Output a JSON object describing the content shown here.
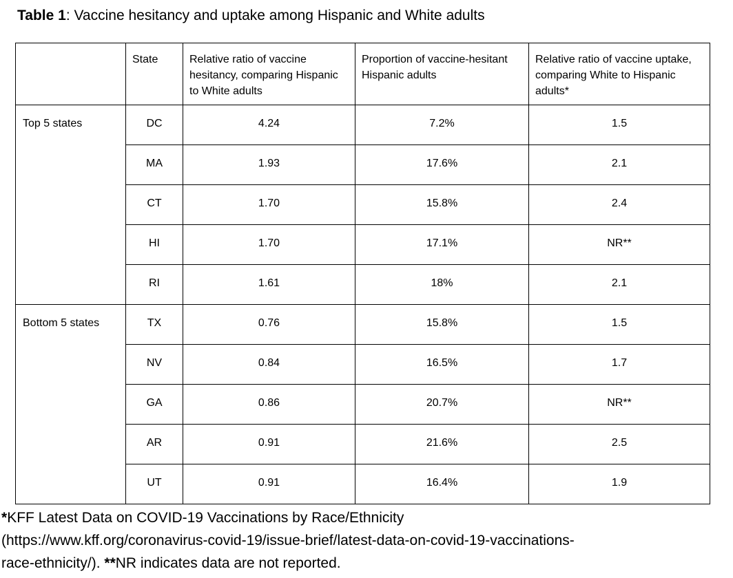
{
  "title": {
    "bold_part": "Table 1",
    "rest": ": Vaccine hesitancy and uptake among Hispanic and White adults"
  },
  "table": {
    "columns": [
      "",
      "State",
      "Relative ratio of vaccine hesitancy, comparing Hispanic to White adults",
      "Proportion of vaccine-hesitant Hispanic adults",
      "Relative ratio of vaccine uptake, comparing White to Hispanic adults*"
    ],
    "groups": [
      {
        "label": "Top 5 states",
        "rows": [
          {
            "state": "DC",
            "hesitancy_ratio": "4.24",
            "hesitant_proportion": "7.2%",
            "uptake_ratio": "1.5"
          },
          {
            "state": "MA",
            "hesitancy_ratio": "1.93",
            "hesitant_proportion": "17.6%",
            "uptake_ratio": "2.1"
          },
          {
            "state": "CT",
            "hesitancy_ratio": "1.70",
            "hesitant_proportion": "15.8%",
            "uptake_ratio": "2.4"
          },
          {
            "state": "HI",
            "hesitancy_ratio": "1.70",
            "hesitant_proportion": "17.1%",
            "uptake_ratio": "NR**"
          },
          {
            "state": "RI",
            "hesitancy_ratio": "1.61",
            "hesitant_proportion": "18%",
            "uptake_ratio": "2.1"
          }
        ]
      },
      {
        "label": "Bottom 5 states",
        "rows": [
          {
            "state": "TX",
            "hesitancy_ratio": "0.76",
            "hesitant_proportion": "15.8%",
            "uptake_ratio": "1.5"
          },
          {
            "state": "NV",
            "hesitancy_ratio": "0.84",
            "hesitant_proportion": "16.5%",
            "uptake_ratio": "1.7"
          },
          {
            "state": "GA",
            "hesitancy_ratio": "0.86",
            "hesitant_proportion": "20.7%",
            "uptake_ratio": "NR**"
          },
          {
            "state": "AR",
            "hesitancy_ratio": "0.91",
            "hesitant_proportion": "21.6%",
            "uptake_ratio": "2.5"
          },
          {
            "state": "UT",
            "hesitancy_ratio": "0.91",
            "hesitant_proportion": "16.4%",
            "uptake_ratio": "1.9"
          }
        ]
      }
    ]
  },
  "footnote_lines": [
    {
      "segments": [
        {
          "text": "*",
          "bold": true
        },
        {
          "text": "KFF Latest Data on COVID-19 Vaccinations by Race/Ethnicity",
          "bold": false
        }
      ]
    },
    {
      "segments": [
        {
          "text": "(https://www.kff.org/coronavirus-covid-19/issue-brief/latest-data-on-covid-19-vaccinations-",
          "bold": false
        }
      ]
    },
    {
      "segments": [
        {
          "text": "race-ethnicity/). ",
          "bold": false
        },
        {
          "text": "**",
          "bold": true
        },
        {
          "text": "NR indicates data are not reported.",
          "bold": false
        }
      ]
    }
  ],
  "colors": {
    "text": "#000000",
    "table_border": "#000000",
    "background": "#ffffff"
  }
}
